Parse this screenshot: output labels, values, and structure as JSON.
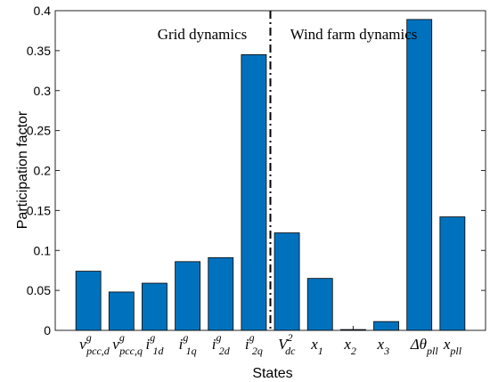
{
  "chart_data": {
    "type": "bar",
    "xlabel": "States",
    "ylabel": "Participation factor",
    "ylim": [
      0,
      0.4
    ],
    "yticks": [
      "0",
      "0.05",
      "0.1",
      "0.15",
      "0.2",
      "0.25",
      "0.3",
      "0.35",
      "0.4"
    ],
    "bar_color": "#0072BD",
    "categories": [
      {
        "base": "v",
        "sup": "g",
        "sub": "pcc,d"
      },
      {
        "base": "v",
        "sup": "g",
        "sub": "pcc,q"
      },
      {
        "base": "i",
        "sup": "g",
        "sub": "1d"
      },
      {
        "base": "i",
        "sup": "g",
        "sub": "1q"
      },
      {
        "base": "i",
        "sup": "g",
        "sub": "2d"
      },
      {
        "base": "i",
        "sup": "g",
        "sub": "2q"
      },
      {
        "base": "V",
        "sup": "2",
        "sub": "dc"
      },
      {
        "base": "x",
        "sup": "",
        "sub": "1"
      },
      {
        "base": "x",
        "sup": "",
        "sub": "2"
      },
      {
        "base": "x",
        "sup": "",
        "sub": "3"
      },
      {
        "base": "Δθ",
        "sup": "",
        "sub": "pll"
      },
      {
        "base": "x",
        "sup": "",
        "sub": "pll"
      }
    ],
    "values": [
      0.074,
      0.048,
      0.059,
      0.086,
      0.091,
      0.345,
      0.122,
      0.065,
      0.001,
      0.011,
      0.389,
      0.142
    ],
    "annotations": {
      "left": "Grid dynamics",
      "right": "Wind farm dynamics"
    },
    "divider_after_category": 6
  }
}
